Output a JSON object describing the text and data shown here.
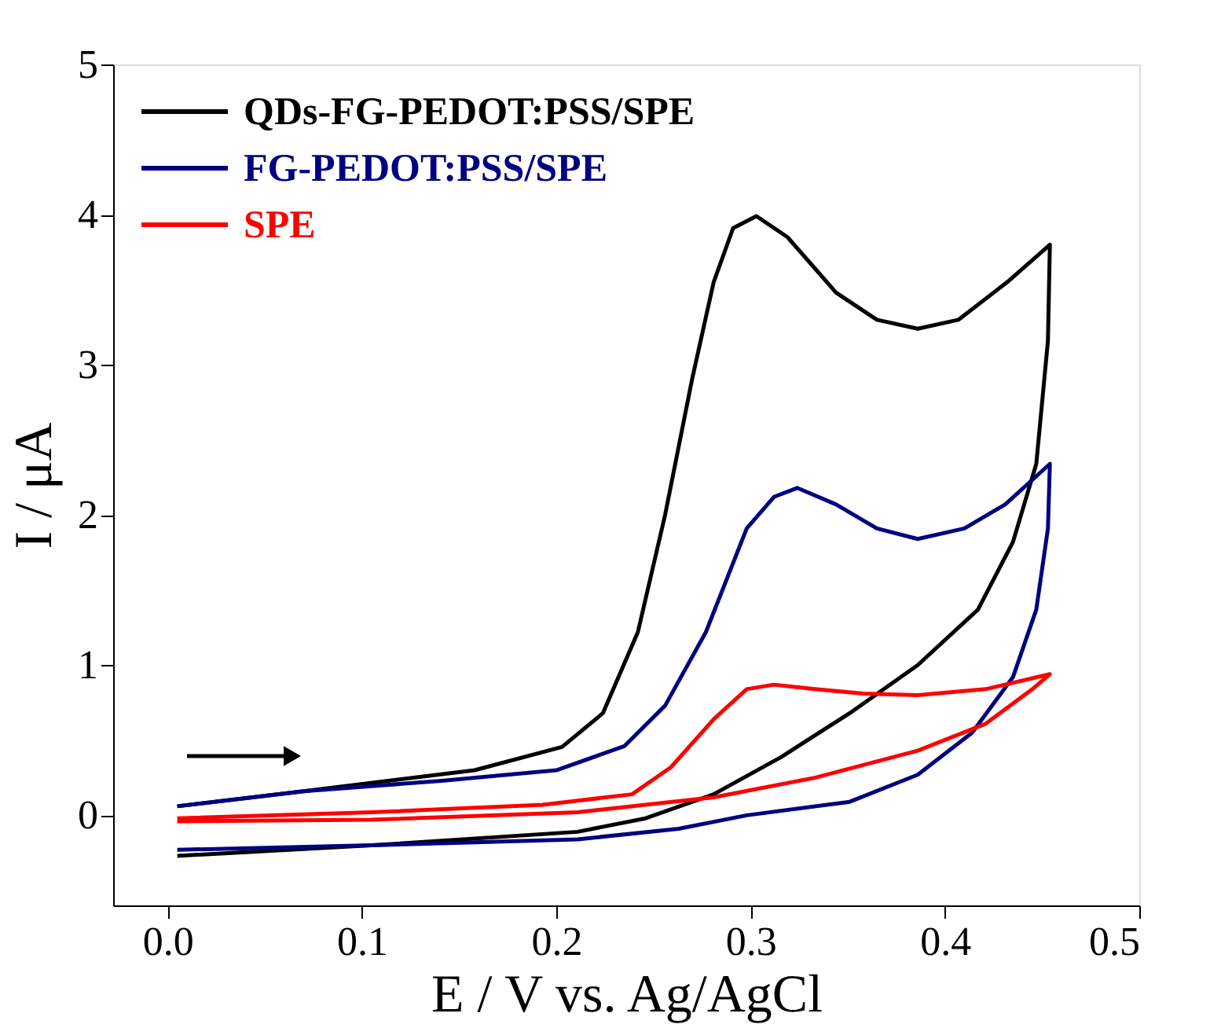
{
  "chart_data": {
    "type": "line",
    "xlabel": "E / V vs. Ag/AgCl",
    "ylabel": "I / μA",
    "xlim": [
      -0.028,
      0.5
    ],
    "ylim": [
      -0.6,
      5
    ],
    "xticks": [
      {
        "value": 0,
        "label": "0.0"
      },
      0.1,
      0.2,
      0.3,
      0.4,
      0.5
    ],
    "yticks": [
      0,
      1,
      2,
      3,
      4,
      5
    ],
    "grid": false,
    "legend": "top left",
    "marker": "none",
    "line_style": "solid",
    "series": [
      {
        "name": "QDs-FG-PEDOT:PSS/SPE",
        "color": "#000000",
        "x": [
          0.005,
          0.07,
          0.158,
          0.203,
          0.224,
          0.242,
          0.256,
          0.27,
          0.281,
          0.291,
          0.303,
          0.319,
          0.344,
          0.365,
          0.386,
          0.407,
          0.432,
          0.454,
          0.453,
          0.447,
          0.435,
          0.417,
          0.386,
          0.351,
          0.316,
          0.281,
          0.246,
          0.211,
          0.105,
          0.005
        ],
        "values": [
          0.06,
          0.16,
          0.3,
          0.455,
          0.68,
          1.22,
          2.0,
          2.91,
          3.55,
          3.91,
          3.99,
          3.85,
          3.48,
          3.3,
          3.24,
          3.3,
          3.55,
          3.8,
          3.16,
          2.34,
          1.82,
          1.37,
          1.0,
          0.68,
          0.39,
          0.14,
          -0.02,
          -0.11,
          -0.2,
          -0.27
        ]
      },
      {
        "name": "FG-PEDOT:PSS/SPE",
        "color": "#000080",
        "x": [
          0.005,
          0.07,
          0.141,
          0.2,
          0.235,
          0.256,
          0.277,
          0.298,
          0.312,
          0.324,
          0.344,
          0.365,
          0.386,
          0.41,
          0.431,
          0.454,
          0.453,
          0.447,
          0.435,
          0.414,
          0.386,
          0.351,
          0.298,
          0.263,
          0.211,
          0.105,
          0.005
        ],
        "values": [
          0.06,
          0.16,
          0.23,
          0.3,
          0.46,
          0.73,
          1.22,
          1.91,
          2.12,
          2.18,
          2.07,
          1.91,
          1.84,
          1.91,
          2.07,
          2.34,
          1.91,
          1.37,
          0.92,
          0.55,
          0.27,
          0.09,
          0.0,
          -0.09,
          -0.16,
          -0.2,
          -0.23
        ]
      },
      {
        "name": "SPE",
        "color": "#ff0000",
        "x": [
          0.005,
          0.105,
          0.193,
          0.239,
          0.259,
          0.281,
          0.298,
          0.312,
          0.333,
          0.358,
          0.386,
          0.421,
          0.454,
          0.445,
          0.421,
          0.386,
          0.333,
          0.281,
          0.211,
          0.105,
          0.005
        ],
        "values": [
          -0.02,
          0.02,
          0.07,
          0.14,
          0.32,
          0.64,
          0.84,
          0.87,
          0.84,
          0.81,
          0.8,
          0.84,
          0.94,
          0.84,
          0.61,
          0.43,
          0.25,
          0.12,
          0.02,
          -0.03,
          -0.04
        ]
      }
    ]
  }
}
